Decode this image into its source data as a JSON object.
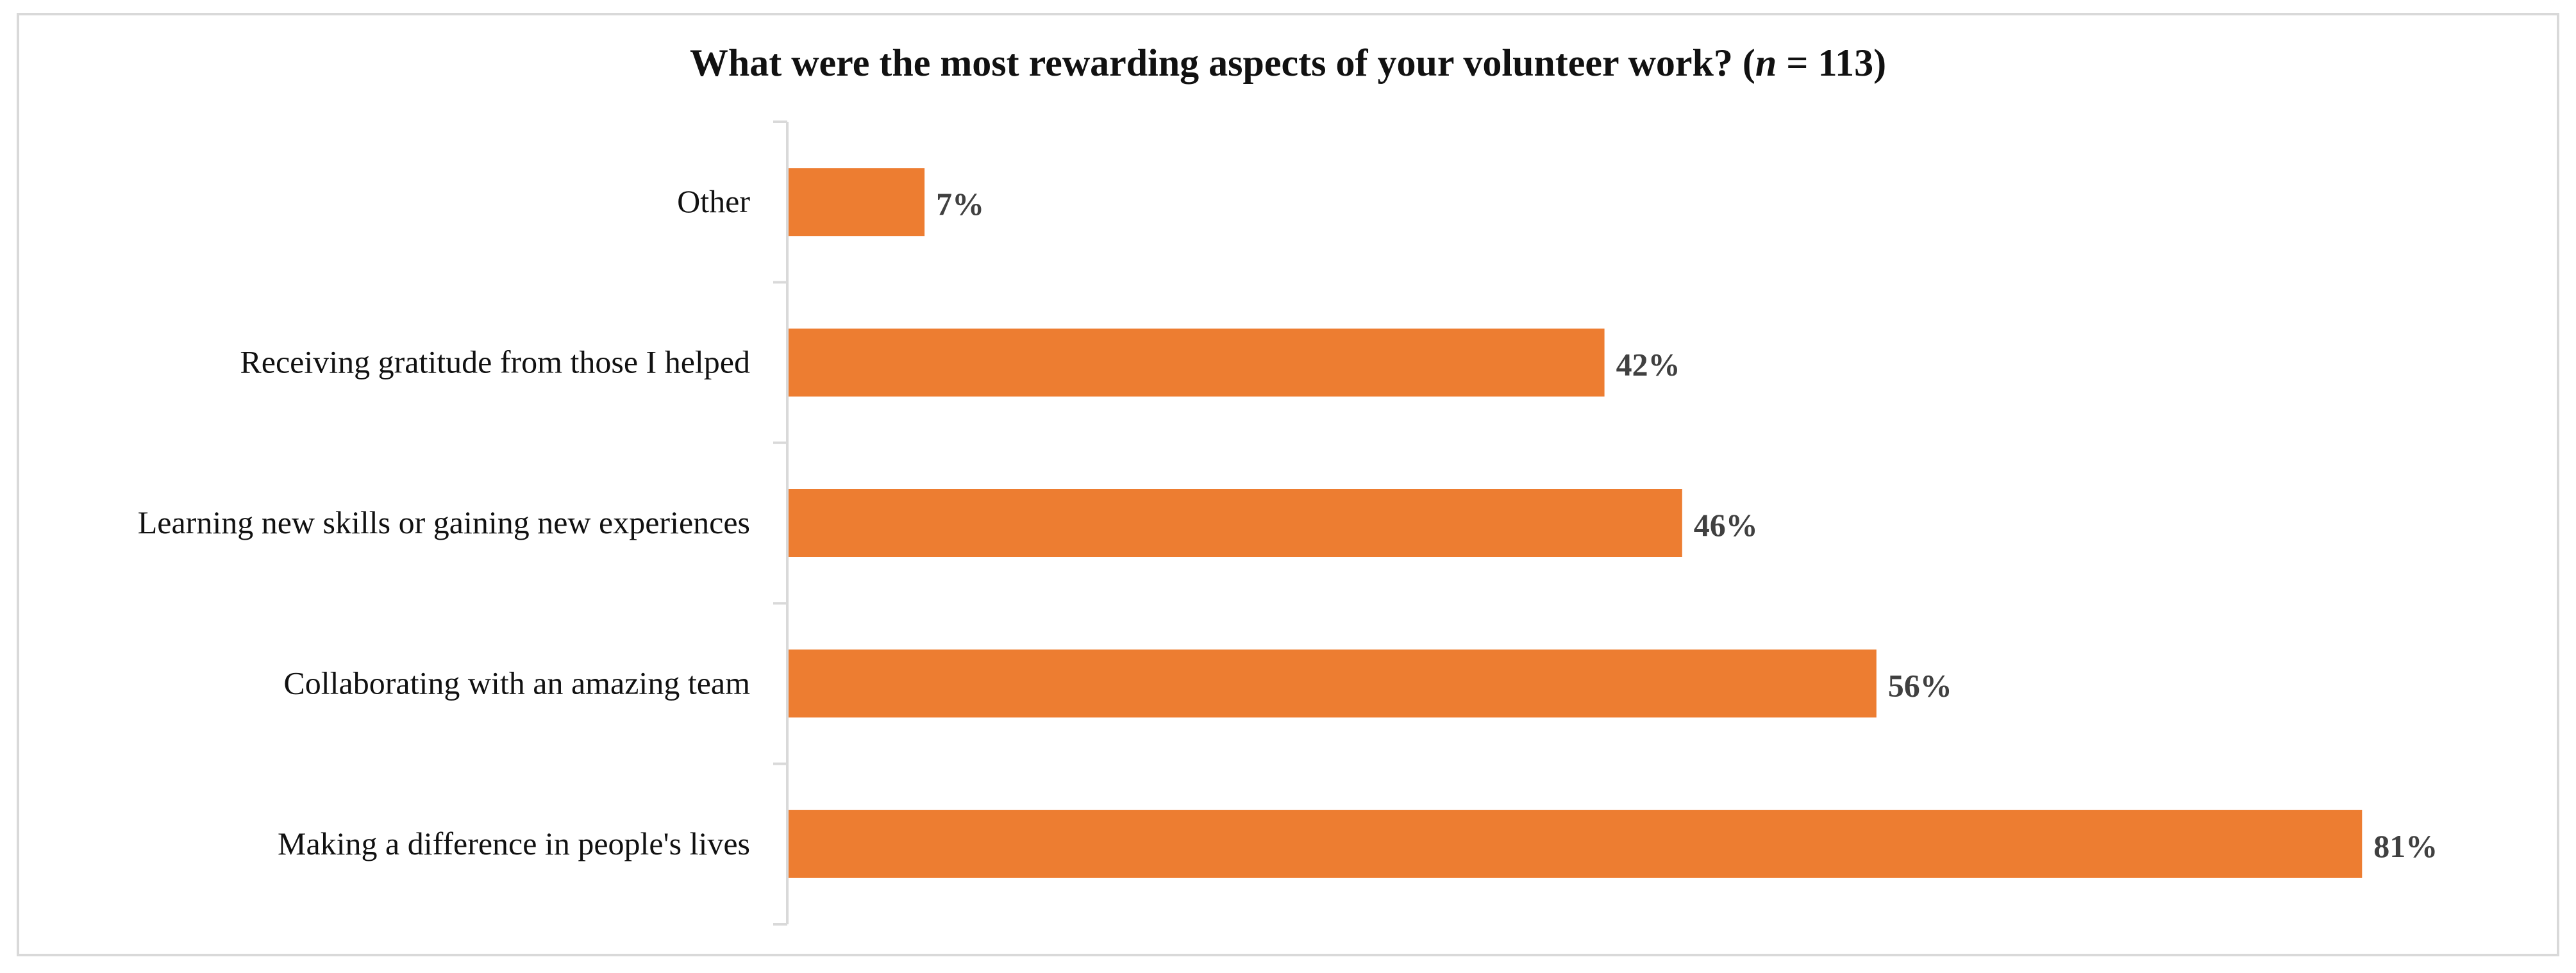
{
  "chart_data": {
    "type": "bar",
    "orientation": "horizontal",
    "title_main": "What were the most rewarding aspects of your volunteer work? (",
    "title_n_symbol": "n",
    "title_n_value": " = 113)",
    "categories": [
      "Other",
      "Receiving gratitude from those I helped",
      "Learning new skills or gaining new experiences",
      "Collaborating with an amazing team",
      "Making a difference  in people's lives"
    ],
    "values": [
      7,
      42,
      46,
      56,
      81
    ],
    "value_labels": [
      "7%",
      "42%",
      "46%",
      "56%",
      "81%"
    ],
    "unit": "%",
    "xlim": [
      0,
      100
    ],
    "grid": false,
    "legend": "none",
    "bar_color": "#ED7D31",
    "axis_color": "#d9d9d9"
  }
}
